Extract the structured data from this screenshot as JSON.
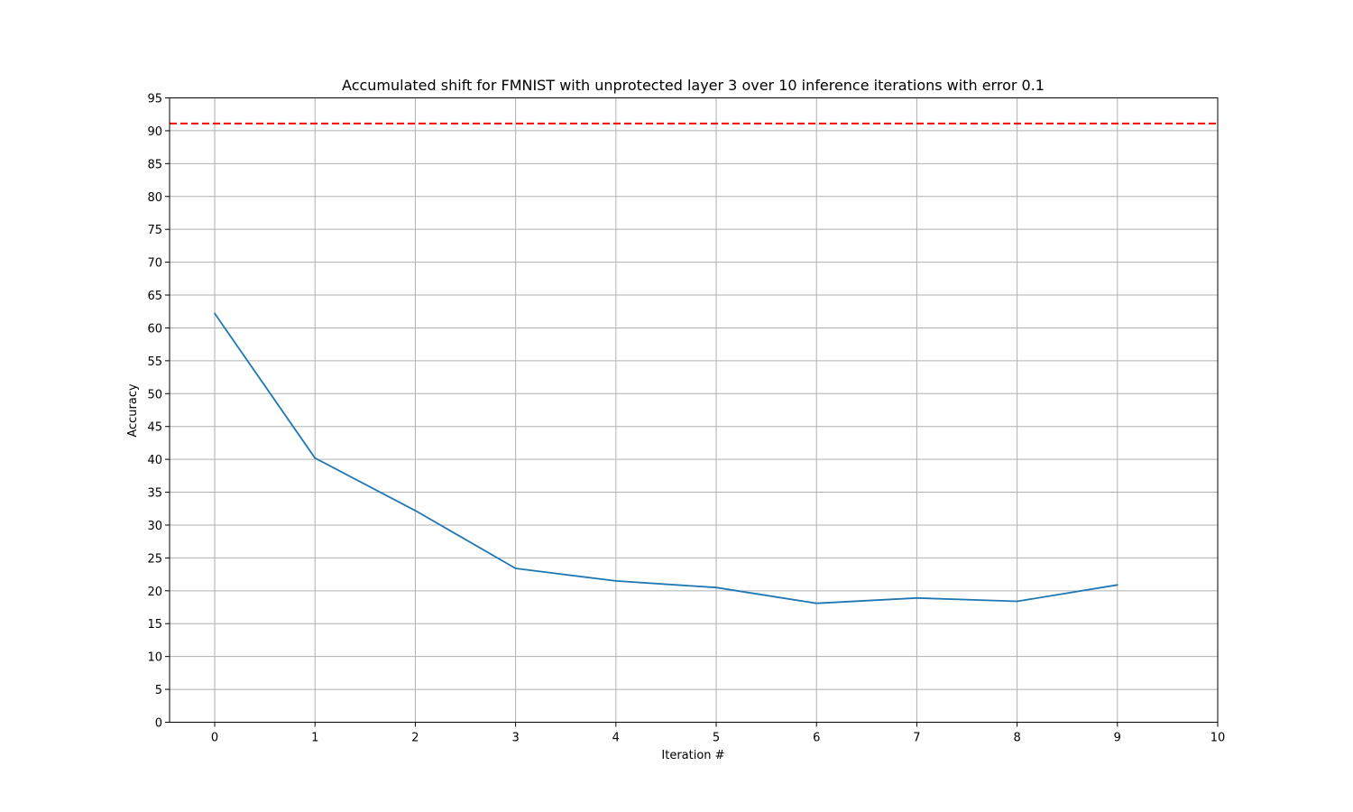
{
  "chart_data": {
    "type": "line",
    "title": "Accumulated shift for FMNIST with unprotected layer 3 over 10 inference iterations with error 0.1",
    "xlabel": "Iteration #",
    "ylabel": "Accuracy",
    "xlim": [
      -0.45,
      10
    ],
    "ylim": [
      0,
      95
    ],
    "x_ticks": [
      0,
      1,
      2,
      3,
      4,
      5,
      6,
      7,
      8,
      9,
      10
    ],
    "y_ticks": [
      0,
      5,
      10,
      15,
      20,
      25,
      30,
      35,
      40,
      45,
      50,
      55,
      60,
      65,
      70,
      75,
      80,
      85,
      90,
      95
    ],
    "grid": true,
    "series": [
      {
        "color": "#1f77b4",
        "x": [
          0,
          1,
          2,
          3,
          4,
          5,
          6,
          7,
          8,
          9
        ],
        "values": [
          62.2,
          40.2,
          32.2,
          23.4,
          21.5,
          20.5,
          18.1,
          18.9,
          18.4,
          20.9
        ]
      }
    ],
    "reference_line": {
      "y": 91.1,
      "color": "#ff0000",
      "style": "dashed"
    }
  }
}
